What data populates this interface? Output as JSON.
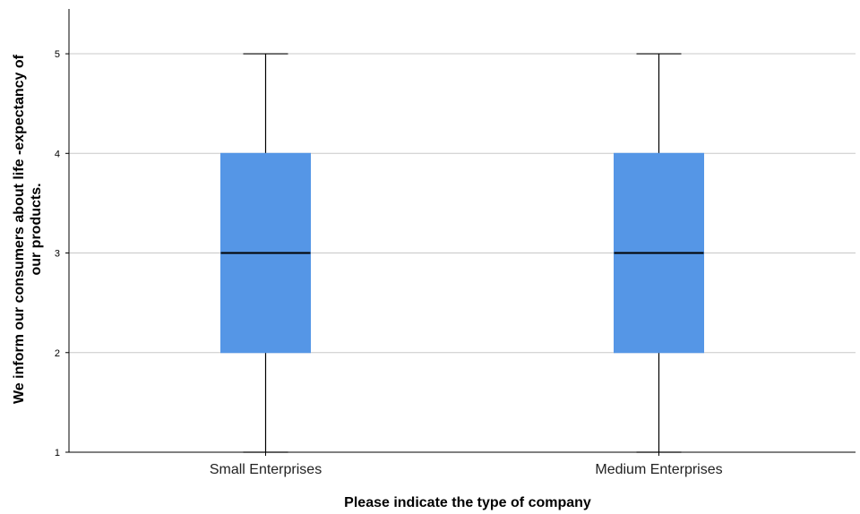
{
  "chart_data": {
    "type": "boxplot",
    "title": "",
    "xlabel": "Please indicate the type of company",
    "ylabel_lines": [
      "We inform our consumers about life -expectancy of",
      "our products."
    ],
    "categories": [
      "Small Enterprises",
      "Medium Enterprises"
    ],
    "boxes": [
      {
        "category": "Small Enterprises",
        "min": 1,
        "q1": 2,
        "median": 3,
        "q3": 4,
        "max": 5
      },
      {
        "category": "Medium Enterprises",
        "min": 1,
        "q1": 2,
        "median": 3,
        "q3": 4,
        "max": 5
      }
    ],
    "y_ticks": [
      "1",
      "2",
      "3",
      "4",
      "5"
    ],
    "ylim": [
      1,
      5.45
    ],
    "grid": true,
    "box_color": "#5596e6"
  }
}
